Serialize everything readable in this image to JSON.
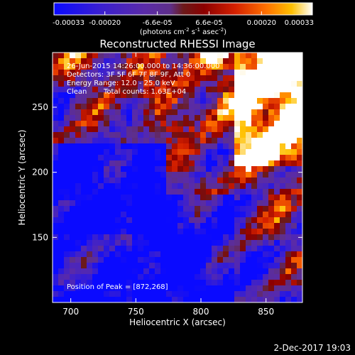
{
  "chart_data": {
    "type": "heatmap",
    "title": "Reconstructed RHESSI Image",
    "xlabel": "Heliocentric X (arcsec)",
    "ylabel": "Heliocentric Y (arcsec)",
    "xlim": [
      686,
      878
    ],
    "ylim": [
      100,
      292
    ],
    "x_ticks": [
      700,
      750,
      800,
      850
    ],
    "y_ticks": [
      150,
      200,
      250
    ],
    "colorbar": {
      "min": -0.00033,
      "max": 0.00033,
      "tick_values": [
        -0.00033,
        -0.0002,
        -6.6e-05,
        6.6e-05,
        0.0002,
        0.00033
      ],
      "tick_labels": [
        "-0.00033",
        "-0.00020",
        "-6.6e-05",
        "6.6e-05",
        "0.00020",
        "0.00033"
      ],
      "units_prefix": "(photons cm",
      "units_sup1": "-2",
      "units_mid": " s",
      "units_sup2": "-1",
      "units_end": " asec",
      "units_sup3": "-2",
      "units_close": ")",
      "stops": [
        [
          0.0,
          "#0a0aff"
        ],
        [
          0.18,
          "#3a1fd0"
        ],
        [
          0.35,
          "#5a2ba8"
        ],
        [
          0.45,
          "#5e2f8a"
        ],
        [
          0.5,
          "#6b1a1a"
        ],
        [
          0.58,
          "#8b0000"
        ],
        [
          0.7,
          "#d42000"
        ],
        [
          0.82,
          "#ff7000"
        ],
        [
          0.92,
          "#ffc000"
        ],
        [
          1.0,
          "#ffffff"
        ]
      ]
    },
    "annotations": {
      "time_range": "26-Jun-2015 14:26:00.000 to 14:36:00.000",
      "detectors": "Detectors: 3F 5F 6F 7F 8F 9F, Att 0",
      "energy": "Energy Range: 12.0 - 25.0 keV",
      "clean": "Clean",
      "total_counts": "Total counts: 1.63E+04",
      "peak": "Position of Peak = [872,268]"
    },
    "peak": [
      872,
      268
    ],
    "grid": false,
    "legend": "none",
    "footer_date": "2-Dec-2017 19:03"
  }
}
